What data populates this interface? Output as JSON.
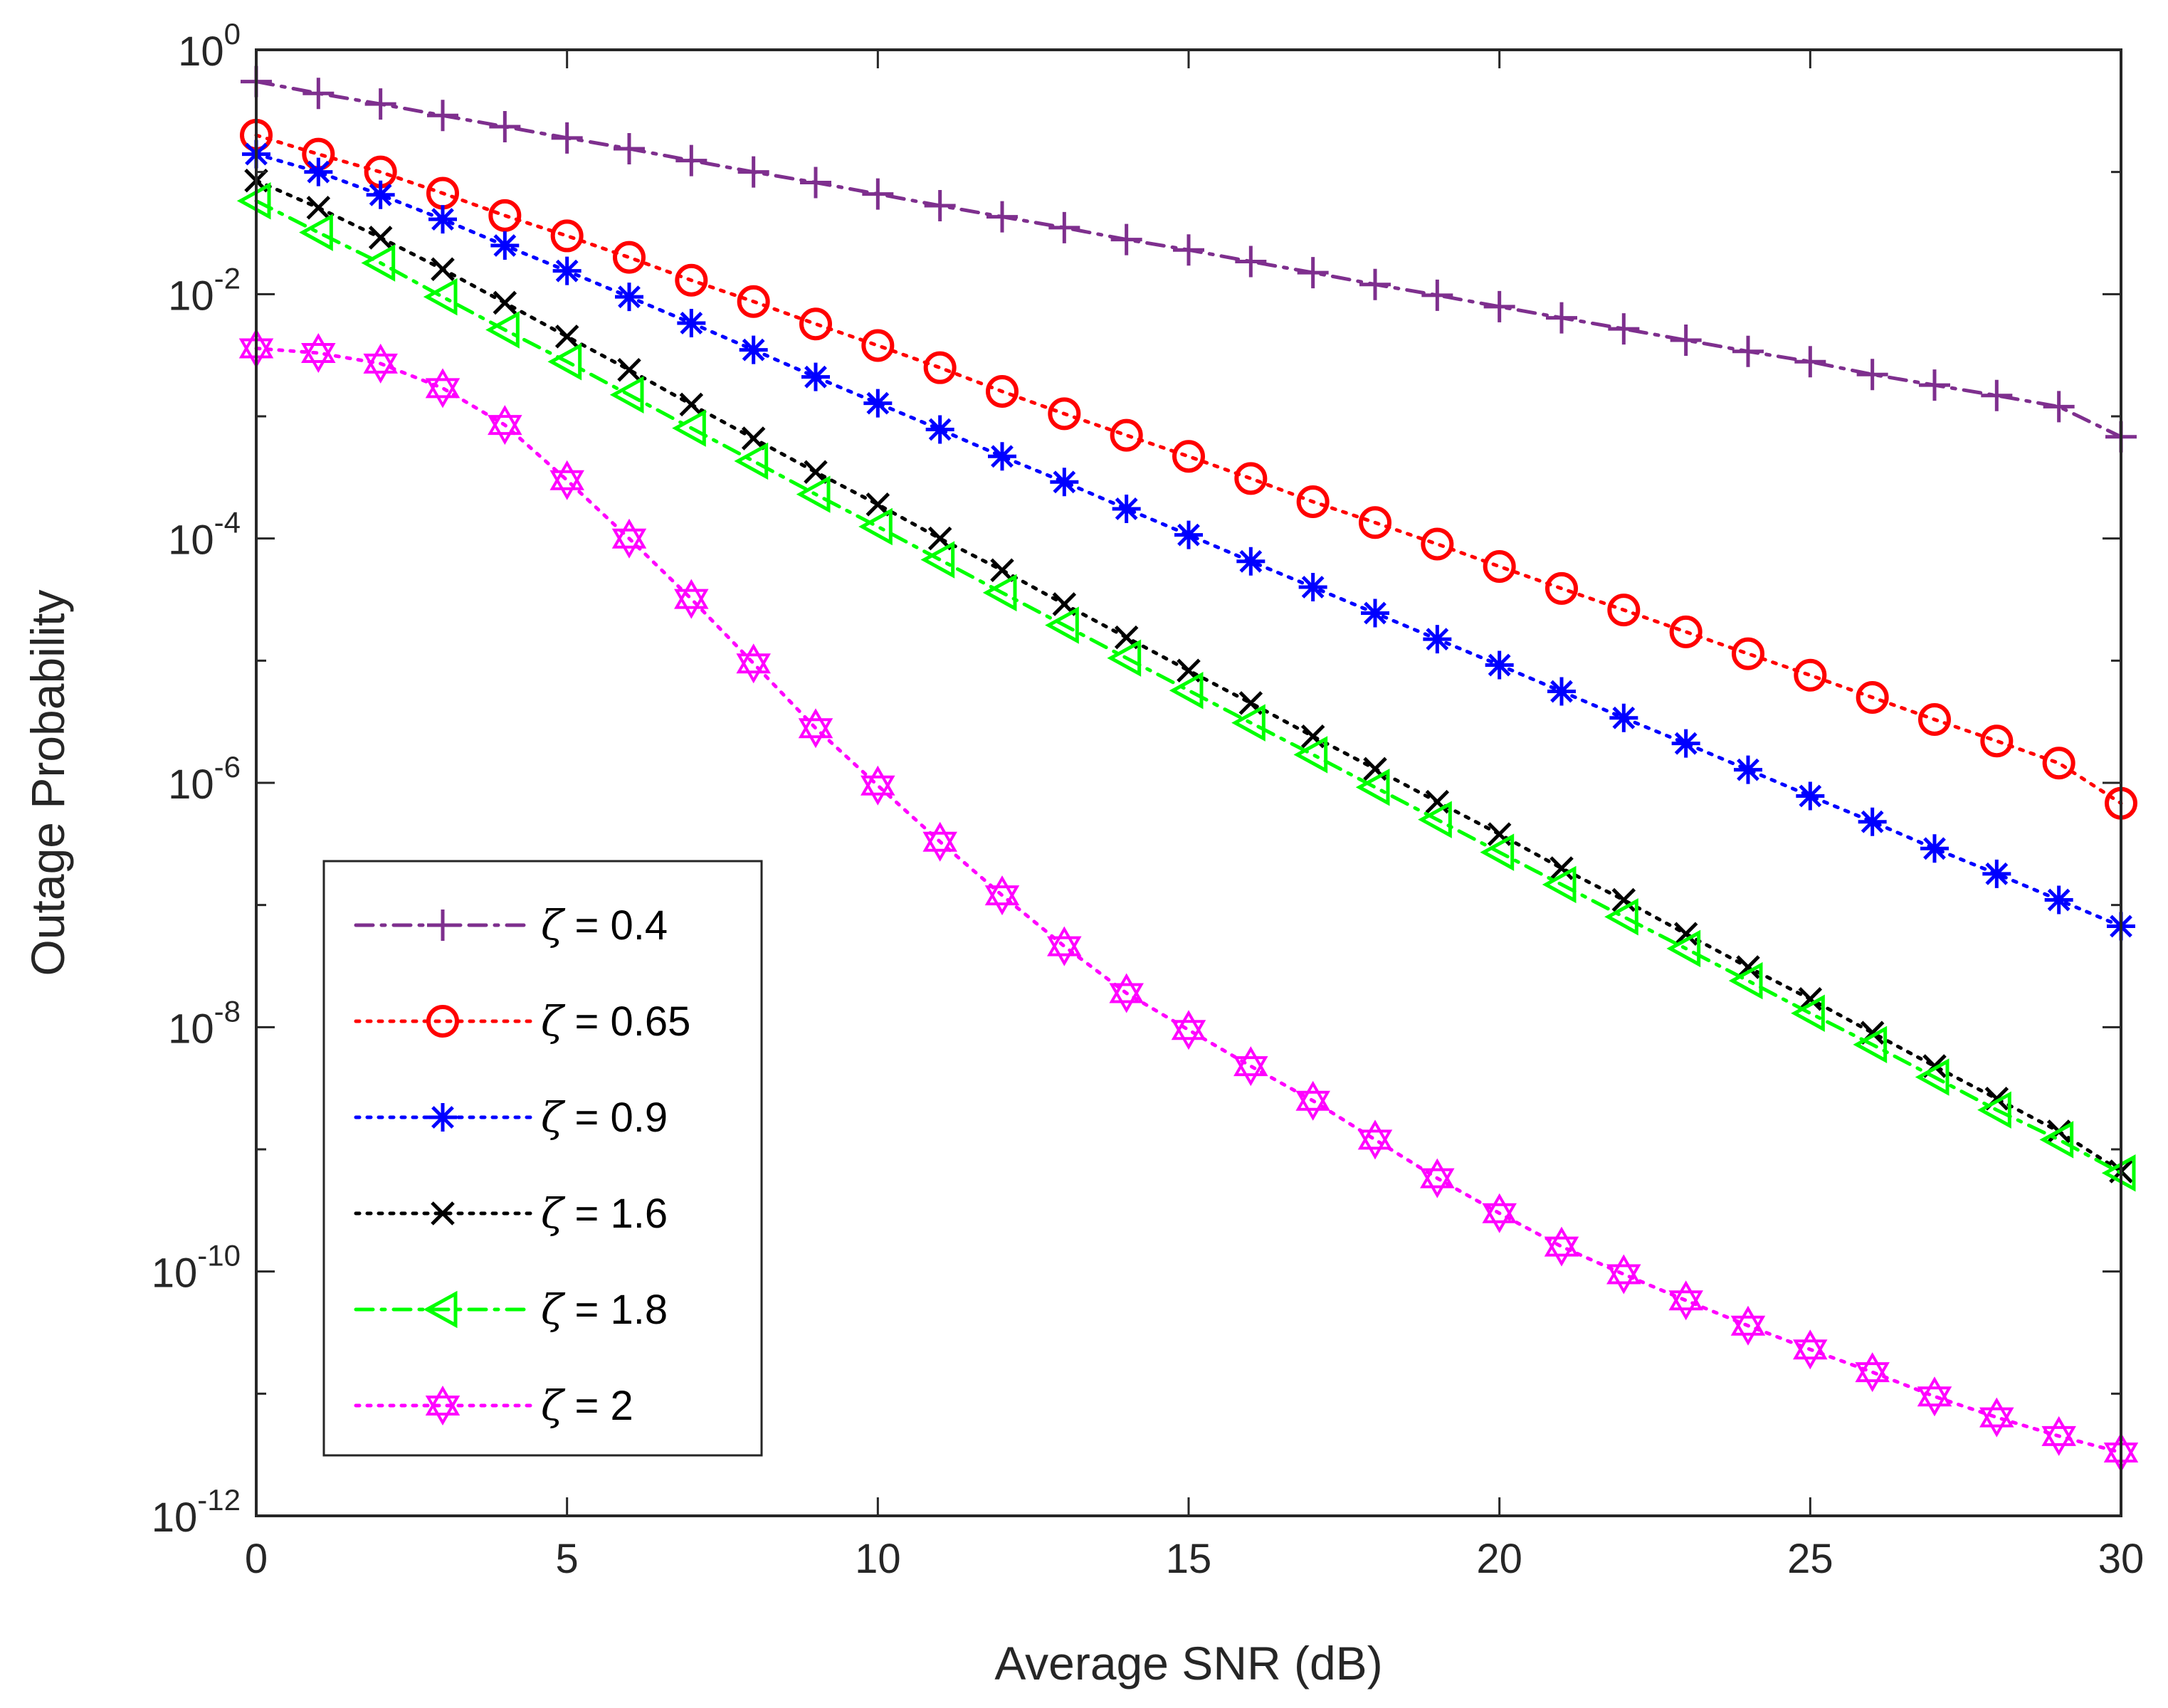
{
  "chart_data": {
    "type": "line",
    "title": "",
    "xlabel": "Average SNR (dB)",
    "ylabel": "Outage Probability",
    "xlim": [
      0,
      30
    ],
    "ylim": [
      1e-12,
      1
    ],
    "yscale": "log",
    "xticks": [
      0,
      5,
      10,
      15,
      20,
      25,
      30
    ],
    "xtick_labels": [
      "0",
      "5",
      "10",
      "15",
      "20",
      "25",
      "30"
    ],
    "yticks": [
      {
        "base": "10",
        "exp": "0"
      },
      {
        "base": "10",
        "exp": "-2"
      },
      {
        "base": "10",
        "exp": "-4"
      },
      {
        "base": "10",
        "exp": "-6"
      },
      {
        "base": "10",
        "exp": "-8"
      },
      {
        "base": "10",
        "exp": "-10"
      },
      {
        "base": "10",
        "exp": "-12"
      }
    ],
    "grid": false,
    "legend_position": "bottom-left",
    "x": [
      0,
      1,
      2,
      3,
      4,
      5,
      6,
      7,
      8,
      9,
      10,
      11,
      12,
      13,
      14,
      15,
      16,
      17,
      18,
      19,
      20,
      21,
      22,
      23,
      24,
      25,
      26,
      27,
      28,
      29,
      30
    ],
    "series": [
      {
        "name": "ζ = 0.4",
        "symbol": "ζ",
        "value_text": " = 0.4",
        "color": "#7E2F8E",
        "marker": "plus",
        "line": "dashdot",
        "values": [
          0.55,
          0.44,
          0.36,
          0.29,
          0.235,
          0.19,
          0.155,
          0.124,
          0.1,
          0.082,
          0.066,
          0.053,
          0.043,
          0.035,
          0.028,
          0.023,
          0.0185,
          0.015,
          0.012,
          0.0098,
          0.0079,
          0.0064,
          0.0052,
          0.0042,
          0.0034,
          0.0028,
          0.0022,
          0.0018,
          0.00148,
          0.0012,
          0.00068
        ]
      },
      {
        "name": "ζ = 0.65",
        "symbol": "ζ",
        "value_text": " = 0.65",
        "color": "#FF0000",
        "marker": "circle",
        "line": "dotted",
        "values": [
          0.2,
          0.14,
          0.1,
          0.067,
          0.044,
          0.03,
          0.02,
          0.013,
          0.0087,
          0.0057,
          0.0038,
          0.0025,
          0.0016,
          0.00105,
          0.0007,
          0.00047,
          0.00031,
          0.0002,
          0.000135,
          9e-05,
          5.9e-05,
          3.9e-05,
          2.6e-05,
          1.72e-05,
          1.14e-05,
          7.6e-06,
          5e-06,
          3.3e-06,
          2.2e-06,
          1.45e-06,
          6.8e-07
        ]
      },
      {
        "name": "ζ = 0.9",
        "symbol": "ζ",
        "value_text": " = 0.9",
        "color": "#0000FF",
        "marker": "asterisk",
        "line": "dotted",
        "values": [
          0.14,
          0.1,
          0.065,
          0.041,
          0.025,
          0.0155,
          0.0095,
          0.0058,
          0.0035,
          0.0021,
          0.00128,
          0.00078,
          0.00047,
          0.00029,
          0.000175,
          0.000107,
          6.5e-05,
          4e-05,
          2.45e-05,
          1.5e-05,
          9.2e-06,
          5.6e-06,
          3.4e-06,
          2.1e-06,
          1.28e-06,
          7.8e-07,
          4.8e-07,
          2.9e-07,
          1.8e-07,
          1.1e-07,
          6.7e-08
        ]
      },
      {
        "name": "ζ = 1.6",
        "symbol": "ζ",
        "value_text": " = 1.6",
        "color": "#000000",
        "marker": "x",
        "line": "dotted",
        "values": [
          0.085,
          0.051,
          0.029,
          0.016,
          0.0085,
          0.0045,
          0.0024,
          0.00125,
          0.00066,
          0.00035,
          0.00019,
          0.0001,
          5.5e-05,
          2.9e-05,
          1.55e-05,
          8.3e-06,
          4.5e-06,
          2.4e-06,
          1.3e-06,
          7e-07,
          3.8e-07,
          2e-07,
          1.1e-07,
          5.8e-08,
          3.1e-08,
          1.7e-08,
          9e-09,
          4.8e-09,
          2.6e-09,
          1.4e-09,
          6.6e-10
        ]
      },
      {
        "name": "ζ = 1.8",
        "symbol": "ζ",
        "value_text": " = 1.8",
        "color": "#00FF00",
        "marker": "triangle-left",
        "line": "dashdot",
        "values": [
          0.058,
          0.032,
          0.018,
          0.0095,
          0.0051,
          0.0028,
          0.0015,
          0.0008,
          0.00043,
          0.00023,
          0.000125,
          6.7e-05,
          3.6e-05,
          1.95e-05,
          1.05e-05,
          5.7e-06,
          3.1e-06,
          1.7e-06,
          9.2e-07,
          5e-07,
          2.7e-07,
          1.47e-07,
          8e-08,
          4.4e-08,
          2.4e-08,
          1.3e-08,
          7.2e-09,
          3.9e-09,
          2.1e-09,
          1.2e-09,
          6.4e-10
        ]
      },
      {
        "name": "ζ = 2",
        "symbol": "ζ",
        "value_text": " = 2",
        "color": "#FF00FF",
        "marker": "hexagram",
        "line": "dotted",
        "values": [
          0.0036,
          0.0033,
          0.0027,
          0.0017,
          0.00085,
          0.0003,
          0.0001,
          3.2e-05,
          9.5e-06,
          2.8e-06,
          9.5e-07,
          3.3e-07,
          1.2e-07,
          4.6e-08,
          1.9e-08,
          9.5e-09,
          4.8e-09,
          2.5e-09,
          1.2e-09,
          5.8e-10,
          3e-10,
          1.6e-10,
          9.5e-11,
          5.8e-11,
          3.6e-11,
          2.3e-11,
          1.5e-11,
          9.5e-12,
          6.4e-12,
          4.5e-12,
          3.3e-12
        ]
      }
    ]
  }
}
